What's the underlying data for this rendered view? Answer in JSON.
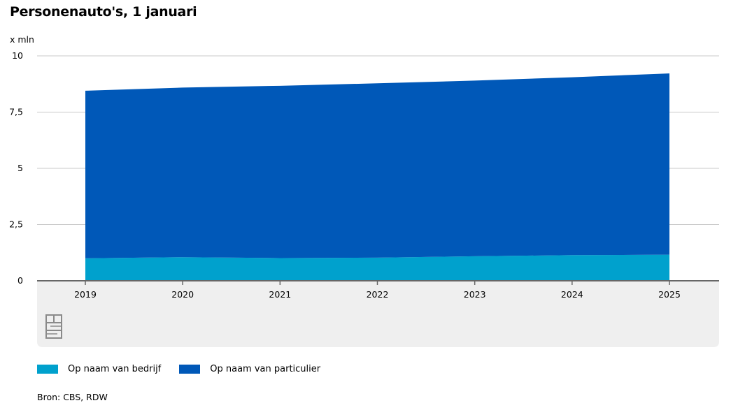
{
  "title": "Personenauto's, 1 januari",
  "source": "Bron: CBS, RDW",
  "colors": {
    "bedrijf": "#00a1cd",
    "particulier": "#0058b8",
    "panel": "#efefef",
    "grid": "#c8c8c8",
    "axis": "#666666"
  },
  "chart_data": {
    "type": "area",
    "stacked": true,
    "ylabel": "x mln",
    "ylim": [
      0,
      10
    ],
    "yticks": [
      0,
      2.5,
      5,
      7.5,
      10
    ],
    "ytick_labels": [
      "0",
      "2,5",
      "5",
      "7,5",
      "10"
    ],
    "x": [
      "2019",
      "2020",
      "2021",
      "2022",
      "2023",
      "2024",
      "2025"
    ],
    "series": [
      {
        "name": "Op naam van bedrijf",
        "color": "#00a1cd",
        "values": [
          1.0,
          1.05,
          1.01,
          1.03,
          1.09,
          1.14,
          1.16
        ]
      },
      {
        "name": "Op naam van particulier",
        "color": "#0058b8",
        "values": [
          7.45,
          7.54,
          7.66,
          7.75,
          7.81,
          7.91,
          8.06
        ]
      }
    ],
    "grid": true,
    "legend": "bottom-left"
  },
  "logo": "cbs-logo-icon"
}
